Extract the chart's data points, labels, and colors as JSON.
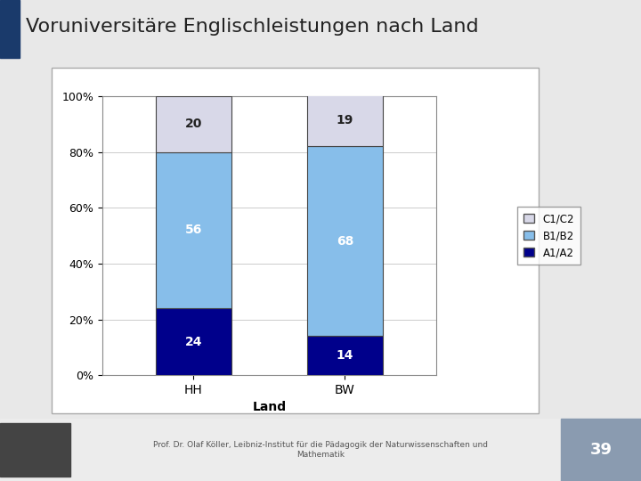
{
  "title": "Voruniversitäre Englischleistungen nach Land",
  "categories": [
    "HH",
    "BW"
  ],
  "A1A2": [
    24,
    14
  ],
  "B1B2": [
    56,
    68
  ],
  "C1C2": [
    20,
    19
  ],
  "color_A1A2": "#00008B",
  "color_B1B2": "#87BEEA",
  "color_C1C2": "#D8D8E8",
  "xlabel": "Land",
  "yticks": [
    0,
    20,
    40,
    60,
    80,
    100
  ],
  "ytick_labels": [
    "0%",
    "20%",
    "40%",
    "60%",
    "80%",
    "100%"
  ],
  "footer_text": "Prof. Dr. Olaf Köller, Leibniz-Institut für die Pädagogik der Naturwissenschaften und\nMathematik",
  "slide_number": "39",
  "label_fontsize": 10,
  "bar_width": 0.5
}
